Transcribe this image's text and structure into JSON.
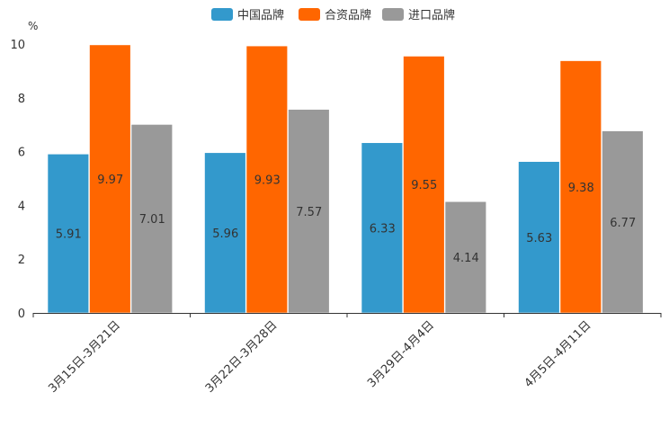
{
  "chart_data": {
    "type": "bar",
    "unit": "%",
    "categories": [
      "3月15日-3月21日",
      "3月22日-3月28日",
      "3月29日-4月4日",
      "4月5日-4月11日"
    ],
    "series": [
      {
        "name": "中国品牌",
        "color": "#3399cc",
        "values": [
          5.91,
          5.96,
          6.33,
          5.63
        ]
      },
      {
        "name": "合资品牌",
        "color": "#ff6600",
        "values": [
          9.97,
          9.93,
          9.55,
          9.38
        ]
      },
      {
        "name": "进口品牌",
        "color": "#999999",
        "values": [
          7.01,
          7.57,
          4.14,
          6.77
        ]
      }
    ],
    "ylim": [
      0,
      10
    ],
    "yticks": [
      0,
      2,
      4,
      6,
      8,
      10
    ],
    "legend_position": "top-center",
    "grid": false
  }
}
